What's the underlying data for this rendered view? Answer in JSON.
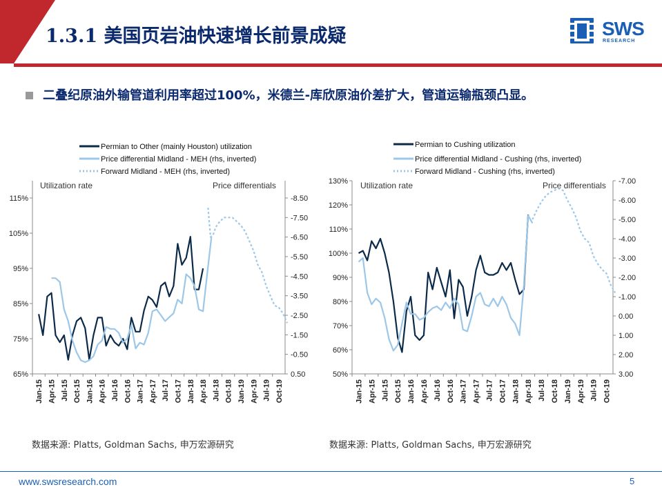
{
  "header": {
    "title": "1.3.1 美国页岩油快速增长前景成疑",
    "logo_text": "SWS",
    "logo_sub": "RESEARCH"
  },
  "bullet": {
    "text": "二叠纪原油外输管道利用率超过100%，米德兰-库欣原油价差扩大，管道运输瓶颈凸显。"
  },
  "colors": {
    "header_band": "#c0282d",
    "navy": "#0b2a4a",
    "light_blue": "#9cc7e8",
    "brand_blue": "#1a5fb4"
  },
  "chart_data": [
    {
      "type": "line",
      "xlabels": [
        "Jan-15",
        "Apr-15",
        "Jul-15",
        "Oct-15",
        "Jan-16",
        "Apr-16",
        "Jul-16",
        "Oct-16",
        "Jan-17",
        "Apr-17",
        "Jul-17",
        "Oct-17",
        "Jan-18",
        "Apr-18",
        "Jul-18",
        "Oct-18",
        "Jan-19",
        "Apr-19",
        "Jul-19",
        "Oct-19"
      ],
      "left_axis_label": "Utilization rate",
      "right_axis_label": "Price differentials",
      "ylim": [
        65,
        115
      ],
      "yticks": [
        "115%",
        "105%",
        "95%",
        "85%",
        "75%",
        "65%"
      ],
      "ytick_values": [
        115,
        105,
        95,
        85,
        75,
        65
      ],
      "y2lim": [
        0.5,
        -8.5
      ],
      "y2ticks": [
        "-8.50",
        "-7.50",
        "-6.50",
        "-5.50",
        "-4.50",
        "-3.50",
        "-2.50",
        "-1.50",
        "-0.50",
        "0.50"
      ],
      "y2tick_values": [
        -8.5,
        -7.5,
        -6.5,
        -5.5,
        -4.5,
        -3.5,
        -2.5,
        -1.5,
        -0.5,
        0.5
      ],
      "series": [
        {
          "name": "Permian to Other (mainly Houston) utilization",
          "axis": "left",
          "style": "solid-dark",
          "x": [
            0,
            0.33,
            0.67,
            1,
            1.33,
            1.67,
            2,
            2.33,
            2.67,
            3,
            3.33,
            3.67,
            4,
            4.33,
            4.67,
            5,
            5.33,
            5.67,
            6,
            6.33,
            6.67,
            7,
            7.33,
            7.67,
            8,
            8.33,
            8.67,
            9,
            9.33,
            9.67,
            10,
            10.33,
            10.67,
            11,
            11.33,
            11.67,
            12,
            12.33,
            12.67,
            13
          ],
          "values": [
            82,
            76,
            87,
            88,
            76,
            74,
            76,
            69,
            76,
            80,
            81,
            78,
            69,
            76,
            81,
            81,
            73,
            76,
            74,
            73,
            75,
            72,
            81,
            77,
            77,
            83,
            87,
            86,
            84,
            90,
            91,
            87,
            90,
            102,
            96,
            98,
            104,
            89,
            89,
            95
          ]
        },
        {
          "name": "Price differential Midland - MEH (rhs, inverted)",
          "axis": "right",
          "style": "solid-light",
          "x": [
            1,
            1.33,
            1.67,
            2,
            2.33,
            2.67,
            3,
            3.33,
            3.67,
            4,
            4.33,
            4.67,
            5,
            5.33,
            5.67,
            6,
            6.33,
            6.67,
            7,
            7.33,
            7.67,
            8,
            8.33,
            8.67,
            9,
            9.33,
            9.67,
            10,
            10.33,
            10.67,
            11,
            11.33,
            11.67,
            12,
            12.33,
            12.67,
            13,
            13.33,
            13.67
          ],
          "values": [
            -4.4,
            -4.4,
            -4.2,
            -2.8,
            -2.2,
            -1.2,
            -0.6,
            -0.2,
            -0.1,
            -0.2,
            -0.4,
            -1.0,
            -1.2,
            -1.9,
            -1.8,
            -1.8,
            -1.6,
            -1.1,
            -1.3,
            -2.0,
            -0.8,
            -1.1,
            -1.0,
            -1.6,
            -2.7,
            -2.8,
            -2.5,
            -2.2,
            -2.4,
            -2.6,
            -3.3,
            -3.1,
            -4.6,
            -4.4,
            -4.0,
            -2.8,
            -2.7,
            -4.6,
            -6.5
          ]
        },
        {
          "name": "Forward Midland - MEH (rhs, inverted)",
          "axis": "right",
          "style": "dotted-light",
          "x": [
            13.4,
            13.6,
            13.8,
            14,
            14.33,
            14.67,
            15,
            15.33,
            15.67,
            16,
            16.33,
            16.67,
            17,
            17.33,
            17.67,
            18,
            18.33,
            18.67,
            19,
            19.33,
            19.67
          ],
          "values": [
            -8.0,
            -6.5,
            -6.6,
            -7.0,
            -7.3,
            -7.5,
            -7.5,
            -7.5,
            -7.3,
            -7.1,
            -6.8,
            -6.3,
            -5.8,
            -5.1,
            -4.7,
            -4.0,
            -3.5,
            -3.0,
            -2.9,
            -2.6,
            -2.1
          ]
        }
      ],
      "source": "数据来源: Platts, Goldman Sachs, 申万宏源研究"
    },
    {
      "type": "line",
      "xlabels": [
        "Jan-15",
        "Apr-15",
        "Jul-15",
        "Oct-15",
        "Jan-16",
        "Apr-16",
        "Jul-16",
        "Oct-16",
        "Jan-17",
        "Apr-17",
        "Jul-17",
        "Oct-17",
        "Jan-18",
        "Apr-18",
        "Jul-18",
        "Oct-18",
        "Jan-19",
        "Apr-19",
        "Jul-19",
        "Oct-19"
      ],
      "left_axis_label": "Utilization rate",
      "right_axis_label": "Price differentials",
      "ylim": [
        50,
        130
      ],
      "yticks": [
        "130%",
        "120%",
        "110%",
        "100%",
        "90%",
        "80%",
        "70%",
        "60%",
        "50%"
      ],
      "ytick_values": [
        130,
        120,
        110,
        100,
        90,
        80,
        70,
        60,
        50
      ],
      "y2lim": [
        3.0,
        -7.0
      ],
      "y2ticks": [
        "-7.00",
        "-6.00",
        "-5.00",
        "-4.00",
        "-3.00",
        "-2.00",
        "-1.00",
        "0.00",
        "1.00",
        "2.00",
        "3.00"
      ],
      "y2tick_values": [
        -7,
        -6,
        -5,
        -4,
        -3,
        -2,
        -1,
        0,
        1,
        2,
        3
      ],
      "series": [
        {
          "name": "Permian to Cushing utilization",
          "axis": "left",
          "style": "solid-dark",
          "x": [
            0,
            0.33,
            0.67,
            1,
            1.33,
            1.67,
            2,
            2.33,
            2.67,
            3,
            3.33,
            3.67,
            4,
            4.33,
            4.67,
            5,
            5.33,
            5.67,
            6,
            6.33,
            6.67,
            7,
            7.33,
            7.67,
            8,
            8.33,
            8.67,
            9,
            9.33,
            9.67,
            10,
            10.33,
            10.67,
            11,
            11.33,
            11.67,
            12,
            12.33,
            12.67,
            13
          ],
          "values": [
            100,
            101,
            97,
            105,
            102,
            106,
            100,
            92,
            80,
            65,
            59,
            76,
            82,
            66,
            64,
            66,
            92,
            85,
            94,
            88,
            82,
            93,
            73,
            89,
            86,
            74,
            82,
            93,
            99,
            92,
            91,
            91,
            92,
            96,
            93,
            96,
            89,
            83,
            85,
            116
          ]
        },
        {
          "name": "Price differential Midland - Cushing (rhs, inverted)",
          "axis": "right",
          "style": "solid-light",
          "x": [
            0,
            0.33,
            0.67,
            1,
            1.33,
            1.67,
            2,
            2.33,
            2.67,
            3,
            3.33,
            3.67,
            4,
            4.33,
            4.67,
            5,
            5.33,
            5.67,
            6,
            6.33,
            6.67,
            7,
            7.33,
            7.67,
            8,
            8.33,
            8.67,
            9,
            9.33,
            9.67,
            10,
            10.33,
            10.67,
            11,
            11.33,
            11.67,
            12,
            12.33,
            12.67,
            13,
            13.33
          ],
          "values": [
            -2.8,
            -3.0,
            -1.2,
            -0.6,
            -0.9,
            -0.7,
            0.1,
            1.2,
            1.8,
            1.5,
            0.4,
            -0.7,
            -0.1,
            -0.1,
            0.2,
            0.1,
            -0.2,
            -0.4,
            -0.5,
            -0.3,
            -0.7,
            -0.4,
            -0.9,
            -0.6,
            0.7,
            0.8,
            0.0,
            -1.0,
            -1.2,
            -0.6,
            -0.5,
            -0.9,
            -0.5,
            -1.0,
            -0.6,
            0.1,
            0.4,
            1.0,
            -1.6,
            -5.2,
            -4.8
          ]
        },
        {
          "name": "Forward Midland - Cushing (rhs, inverted)",
          "axis": "right",
          "style": "dotted-light",
          "x": [
            13.33,
            13.67,
            14,
            14.33,
            14.67,
            15,
            15.33,
            15.67,
            16,
            16.33,
            16.67,
            17,
            17.33,
            17.67,
            18,
            18.33,
            18.67,
            19,
            19.33,
            19.67
          ],
          "values": [
            -5.0,
            -5.5,
            -5.9,
            -6.2,
            -6.4,
            -6.5,
            -6.6,
            -6.5,
            -6.0,
            -5.6,
            -5.1,
            -4.4,
            -4.0,
            -3.8,
            -3.1,
            -2.7,
            -2.4,
            -2.2,
            -1.6,
            -1.2
          ]
        }
      ],
      "source": "数据来源: Platts, Goldman Sachs, 申万宏源研究"
    }
  ],
  "footer": {
    "url": "www.swsresearch.com",
    "page": "5"
  }
}
